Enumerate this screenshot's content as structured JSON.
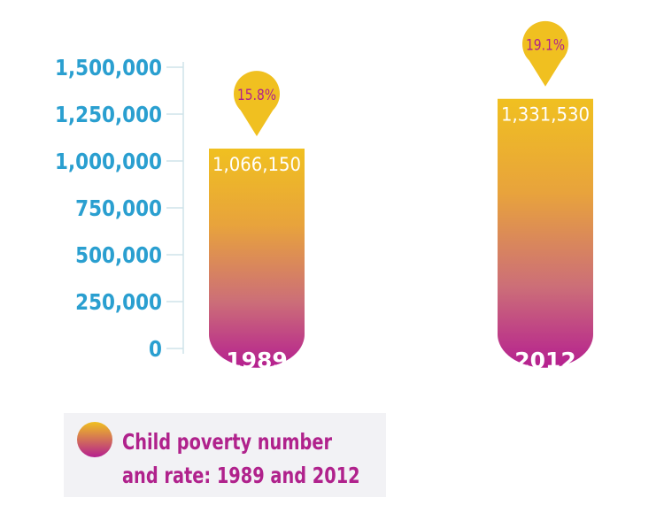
{
  "chart_data": {
    "type": "bar",
    "categories": [
      "1989",
      "2012"
    ],
    "values": [
      1066150,
      1331530
    ],
    "value_labels": [
      "1,066,150",
      "1,331,530"
    ],
    "rates": [
      "15.8%",
      "19.1%"
    ],
    "yticks": [
      0,
      250000,
      500000,
      750000,
      1000000,
      1250000,
      1500000
    ],
    "ytick_labels": [
      "0",
      "250,000",
      "500,000",
      "750,000",
      "1,000,000",
      "1,250,000",
      "1,500,000"
    ],
    "ylim": [
      0,
      1500000
    ],
    "title": "",
    "xlabel": "",
    "ylabel": "",
    "grid": false,
    "legend": {
      "label_line1": "Child poverty number",
      "label_line2": "and rate: 1989 and 2012",
      "placement": "bottom-left"
    },
    "colors": {
      "bar_top": "#f0c020",
      "bar_bottom": "#b51f90",
      "axis_text": "#2a9fd0",
      "rate_text": "#b0228c",
      "marker": "#f0c020",
      "axis_line": "#cfe3ea"
    }
  }
}
